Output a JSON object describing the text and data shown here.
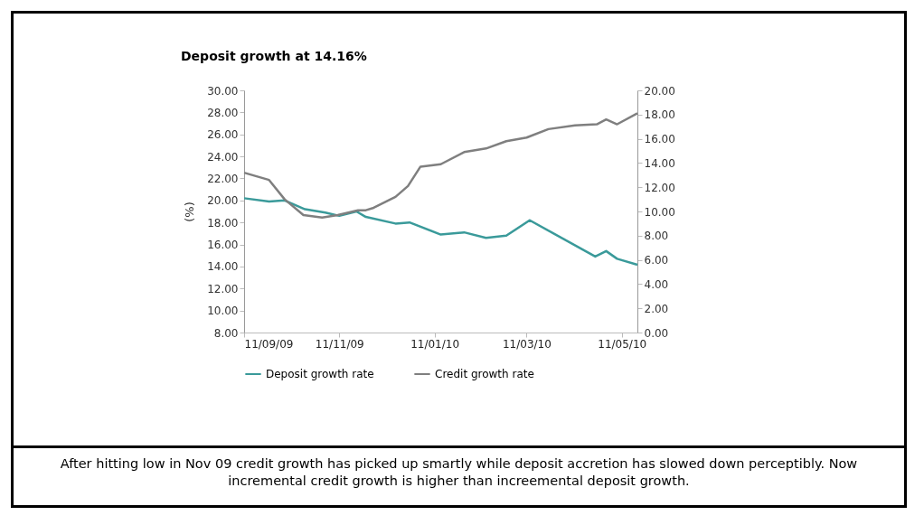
{
  "chart_data": {
    "type": "line",
    "title": "Deposit growth at 14.16%",
    "ylabel": "(%)",
    "xlim": [
      "2009-09-11",
      "2010-05-21"
    ],
    "xticks": [
      {
        "value": "2009-09-11",
        "label": "11/09/09"
      },
      {
        "value": "2009-11-11",
        "label": "11/11/09"
      },
      {
        "value": "2010-01-11",
        "label": "11/01/10"
      },
      {
        "value": "2010-03-11",
        "label": "11/03/10"
      },
      {
        "value": "2010-05-11",
        "label": "11/05/10"
      }
    ],
    "ylim": [
      8,
      30
    ],
    "yticks": [
      {
        "value": 8,
        "label": "8.00"
      },
      {
        "value": 10,
        "label": "10.00"
      },
      {
        "value": 12,
        "label": "12.00"
      },
      {
        "value": 14,
        "label": "14.00"
      },
      {
        "value": 16,
        "label": "16.00"
      },
      {
        "value": 18,
        "label": "18.00"
      },
      {
        "value": 20,
        "label": "20.00"
      },
      {
        "value": 22,
        "label": "22.00"
      },
      {
        "value": 24,
        "label": "24.00"
      },
      {
        "value": 26,
        "label": "26.00"
      },
      {
        "value": 28,
        "label": "28.00"
      },
      {
        "value": 30,
        "label": "30.00"
      }
    ],
    "y2lim": [
      0,
      20
    ],
    "y2ticks": [
      {
        "value": 0,
        "label": "0.00"
      },
      {
        "value": 2,
        "label": "2.00"
      },
      {
        "value": 4,
        "label": "4.00"
      },
      {
        "value": 6,
        "label": "6.00"
      },
      {
        "value": 8,
        "label": "8.00"
      },
      {
        "value": 10,
        "label": "10.00"
      },
      {
        "value": 12,
        "label": "12.00"
      },
      {
        "value": 14,
        "label": "14.00"
      },
      {
        "value": 16,
        "label": "16.00"
      },
      {
        "value": 18,
        "label": "18.00"
      },
      {
        "value": 20,
        "label": "20.00"
      }
    ],
    "grid": false,
    "legend": "bottom",
    "marker": "none",
    "line_style": "solid",
    "series": [
      {
        "name": "Deposit growth rate",
        "color": "#3a9a9a",
        "x": [
          "2009-09-11",
          "2009-09-27",
          "2009-10-07",
          "2009-10-20",
          "2009-11-02",
          "2009-11-11",
          "2009-11-22",
          "2009-11-28",
          "2009-12-17",
          "2009-12-26",
          "2010-01-15",
          "2010-01-30",
          "2010-02-13",
          "2010-02-26",
          "2010-03-13",
          "2010-04-24",
          "2010-05-01",
          "2010-05-08",
          "2010-05-21"
        ],
        "values": [
          20.2,
          19.9,
          20.0,
          19.2,
          18.9,
          18.6,
          19.0,
          18.5,
          17.9,
          18.0,
          16.9,
          17.1,
          16.6,
          16.8,
          18.2,
          14.9,
          15.4,
          14.7,
          14.16
        ]
      },
      {
        "name": "Credit growth rate",
        "color": "#7f7f7f",
        "axis": "y2",
        "x": [
          "2009-09-11",
          "2009-09-27",
          "2009-10-07",
          "2009-10-19",
          "2009-10-31",
          "2009-11-10",
          "2009-11-23",
          "2009-11-28",
          "2009-12-03",
          "2009-12-17",
          "2009-12-25",
          "2010-01-02",
          "2010-01-15",
          "2010-01-30",
          "2010-02-13",
          "2010-02-26",
          "2010-03-11",
          "2010-03-25",
          "2010-04-11",
          "2010-04-25",
          "2010-05-01",
          "2010-05-08",
          "2010-05-21"
        ],
        "values": [
          13.2,
          12.6,
          11.0,
          9.7,
          9.5,
          9.7,
          10.1,
          10.1,
          10.3,
          11.2,
          12.1,
          13.7,
          13.9,
          14.9,
          15.2,
          15.8,
          16.1,
          16.8,
          17.1,
          17.2,
          17.6,
          17.2,
          18.1
        ]
      }
    ],
    "annotations": [
      "After hitting low in Nov 09 credit growth has picked up smartly while deposit accretion has slowed down perceptibly. Now incremental credit growth is higher than increemental deposit growth."
    ]
  }
}
